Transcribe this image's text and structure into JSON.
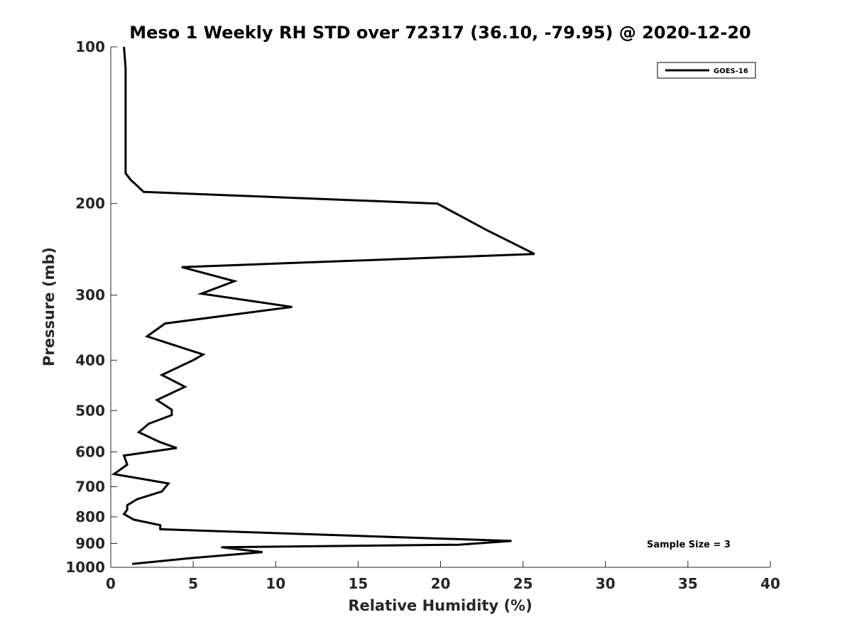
{
  "chart_data": {
    "type": "line",
    "title": "Meso 1 Weekly RH STD over 72317 (36.10, -79.95) @ 2020-12-20",
    "xlabel": "Relative Humidity (%)",
    "ylabel": "Pressure (mb)",
    "xlim": [
      0,
      40
    ],
    "ylim": [
      100,
      1000
    ],
    "y_scale": "log",
    "y_reversed": true,
    "x_ticks": [
      "0",
      "5",
      "10",
      "15",
      "20",
      "25",
      "30",
      "35",
      "40"
    ],
    "y_ticks": [
      "100",
      "200",
      "300",
      "400",
      "500",
      "600",
      "700",
      "800",
      "900",
      "1000"
    ],
    "grid": false,
    "legend": {
      "placement": "top-right",
      "entries": [
        "GOES-16"
      ]
    },
    "annotation": "Sample Size = 3",
    "series": [
      {
        "name": "GOES-16",
        "color": "#000000",
        "x": [
          0.8,
          0.9,
          0.9,
          0.9,
          0.9,
          0.9,
          0.9,
          0.9,
          0.9,
          1.2,
          2.0,
          19.8,
          22.8,
          25.7,
          4.3,
          7.5,
          5.5,
          11.0,
          3.3,
          2.2,
          5.6,
          5.0,
          3.1,
          4.5,
          2.8,
          3.7,
          3.7,
          2.3,
          1.7,
          3.0,
          4.0,
          0.8,
          1.0,
          0.2,
          3.5,
          3.1,
          1.6,
          1.0,
          1.0,
          0.8,
          1.4,
          3.0,
          3.0,
          24.3,
          21.1,
          6.7,
          9.2,
          4.9,
          1.3
        ],
        "y": [
          100,
          110,
          125,
          137,
          150,
          160,
          165,
          170,
          175,
          180,
          190,
          200,
          225,
          250,
          265,
          282,
          298,
          316,
          340,
          360,
          390,
          400,
          427,
          450,
          477,
          498,
          510,
          530,
          550,
          575,
          590,
          610,
          635,
          662,
          690,
          715,
          740,
          760,
          775,
          790,
          810,
          830,
          845,
          890,
          905,
          915,
          935,
          960,
          985
        ]
      }
    ]
  }
}
